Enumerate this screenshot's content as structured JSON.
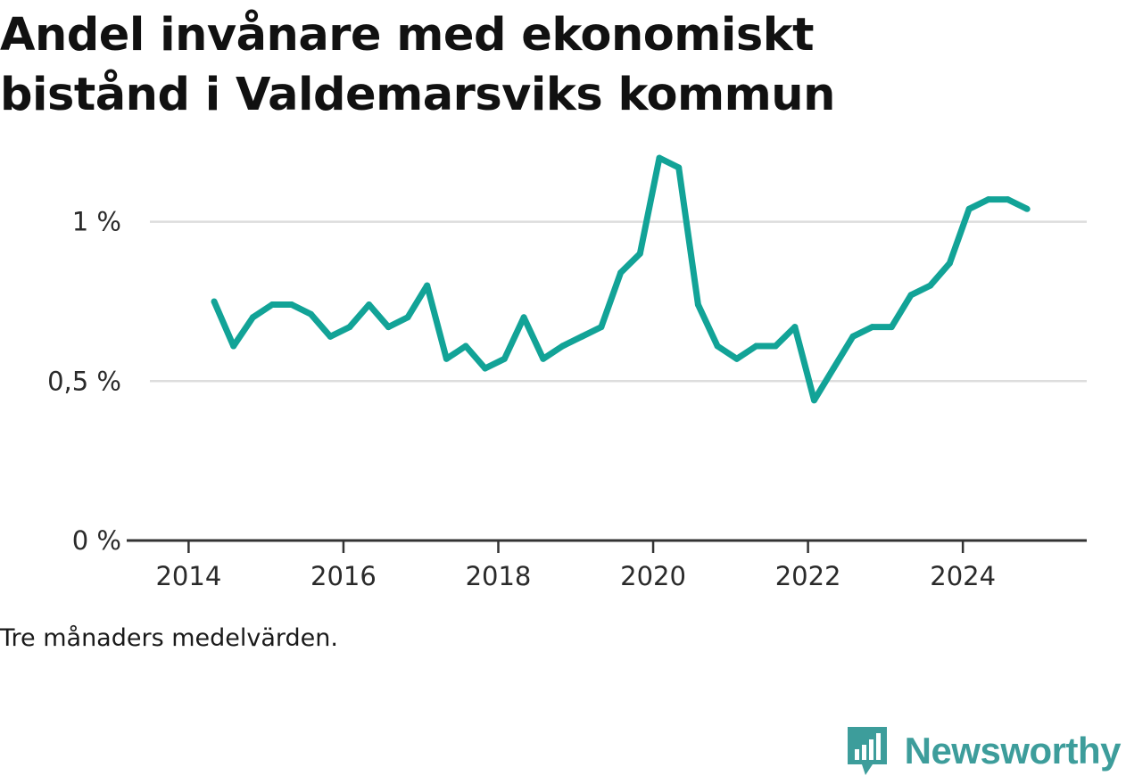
{
  "header": {
    "title_line1": "Andel invånare med ekonomiskt",
    "title_line2": "bistånd i Valdemarsviks kommun"
  },
  "footer": {
    "note": "Tre månaders medelvärden.",
    "brand": "Newsworthy",
    "brand_icon": "bar-chart-speech-bubble-icon"
  },
  "colors": {
    "line": "#12a397",
    "grid": "#dddddd",
    "axis": "#333333",
    "brand": "#3d9d9b"
  },
  "chart_data": {
    "type": "line",
    "title": "Andel invånare med ekonomiskt bistånd i Valdemarsviks kommun",
    "xlabel": "",
    "ylabel": "",
    "xlim": [
      2013.5,
      2025.6
    ],
    "ylim": [
      0,
      1.22
    ],
    "x_ticks": [
      2014,
      2016,
      2018,
      2020,
      2022,
      2024
    ],
    "x_tick_labels": [
      "2014",
      "2016",
      "2018",
      "2020",
      "2022",
      "2024"
    ],
    "y_ticks": [
      0,
      0.5,
      1
    ],
    "y_tick_labels": [
      "0 %",
      "0,5 %",
      "1 %"
    ],
    "grid": "horizontal",
    "series": [
      {
        "x": [
          2014.33,
          2014.58,
          2014.83,
          2015.08,
          2015.33,
          2015.58,
          2015.83,
          2016.08,
          2016.33,
          2016.58,
          2016.83,
          2017.08,
          2017.33,
          2017.58,
          2017.83,
          2018.08,
          2018.33,
          2018.58,
          2018.83,
          2019.08,
          2019.33,
          2019.58,
          2019.83,
          2020.08,
          2020.33,
          2020.58,
          2020.83,
          2021.08,
          2021.33,
          2021.58,
          2021.83,
          2022.08,
          2022.33,
          2022.58,
          2022.83,
          2023.08,
          2023.33,
          2023.58,
          2023.83,
          2024.08,
          2024.33,
          2024.58,
          2024.83
        ],
        "values": [
          0.75,
          0.61,
          0.7,
          0.74,
          0.74,
          0.71,
          0.64,
          0.67,
          0.74,
          0.67,
          0.7,
          0.8,
          0.57,
          0.61,
          0.54,
          0.57,
          0.7,
          0.57,
          0.61,
          0.64,
          0.67,
          0.84,
          0.9,
          1.2,
          1.17,
          0.74,
          0.61,
          0.57,
          0.61,
          0.61,
          0.67,
          0.44,
          0.54,
          0.64,
          0.67,
          0.67,
          0.77,
          0.8,
          0.87,
          1.04,
          1.07,
          1.07,
          1.04
        ]
      }
    ]
  }
}
